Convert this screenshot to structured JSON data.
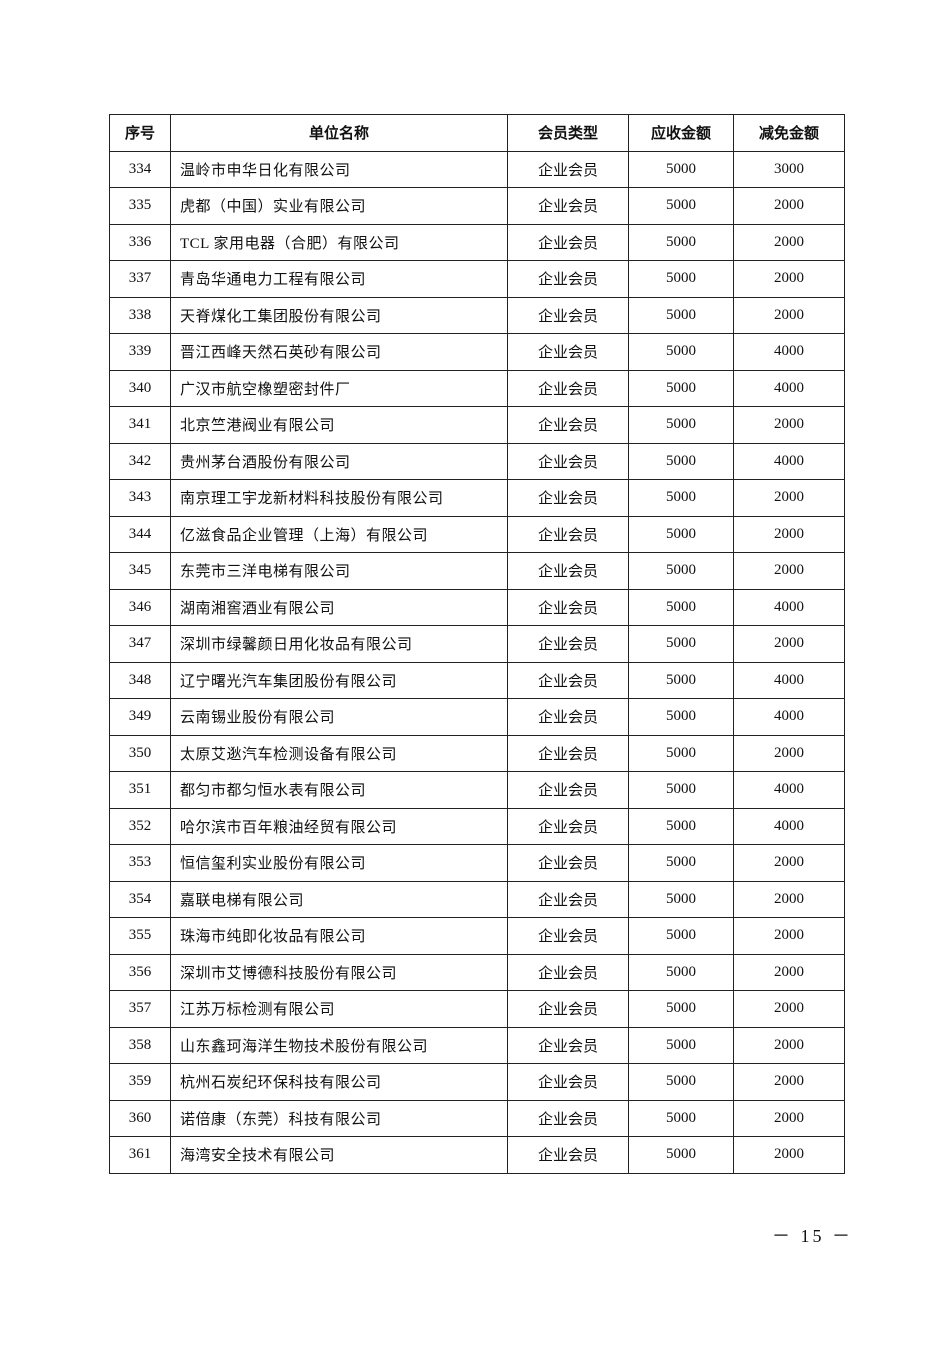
{
  "table": {
    "headers": [
      "序号",
      "单位名称",
      "会员类型",
      "应收金额",
      "减免金额"
    ],
    "rows": [
      [
        "334",
        "温岭市申华日化有限公司",
        "企业会员",
        "5000",
        "3000"
      ],
      [
        "335",
        "虎都（中国）实业有限公司",
        "企业会员",
        "5000",
        "2000"
      ],
      [
        "336",
        "TCL 家用电器（合肥）有限公司",
        "企业会员",
        "5000",
        "2000"
      ],
      [
        "337",
        "青岛华通电力工程有限公司",
        "企业会员",
        "5000",
        "2000"
      ],
      [
        "338",
        "天脊煤化工集团股份有限公司",
        "企业会员",
        "5000",
        "2000"
      ],
      [
        "339",
        "晋江西峰天然石英砂有限公司",
        "企业会员",
        "5000",
        "4000"
      ],
      [
        "340",
        "广汉市航空橡塑密封件厂",
        "企业会员",
        "5000",
        "4000"
      ],
      [
        "341",
        "北京竺港阀业有限公司",
        "企业会员",
        "5000",
        "2000"
      ],
      [
        "342",
        "贵州茅台酒股份有限公司",
        "企业会员",
        "5000",
        "4000"
      ],
      [
        "343",
        "南京理工宇龙新材料科技股份有限公司",
        "企业会员",
        "5000",
        "2000"
      ],
      [
        "344",
        "亿滋食品企业管理（上海）有限公司",
        "企业会员",
        "5000",
        "2000"
      ],
      [
        "345",
        "东莞市三洋电梯有限公司",
        "企业会员",
        "5000",
        "2000"
      ],
      [
        "346",
        "湖南湘窖酒业有限公司",
        "企业会员",
        "5000",
        "4000"
      ],
      [
        "347",
        "深圳市绿馨颜日用化妆品有限公司",
        "企业会员",
        "5000",
        "2000"
      ],
      [
        "348",
        "辽宁曙光汽车集团股份有限公司",
        "企业会员",
        "5000",
        "4000"
      ],
      [
        "349",
        "云南锡业股份有限公司",
        "企业会员",
        "5000",
        "4000"
      ],
      [
        "350",
        "太原艾逖汽车检测设备有限公司",
        "企业会员",
        "5000",
        "2000"
      ],
      [
        "351",
        "都匀市都匀恒水表有限公司",
        "企业会员",
        "5000",
        "4000"
      ],
      [
        "352",
        "哈尔滨市百年粮油经贸有限公司",
        "企业会员",
        "5000",
        "4000"
      ],
      [
        "353",
        "恒信玺利实业股份有限公司",
        "企业会员",
        "5000",
        "2000"
      ],
      [
        "354",
        "嘉联电梯有限公司",
        "企业会员",
        "5000",
        "2000"
      ],
      [
        "355",
        "珠海市纯即化妆品有限公司",
        "企业会员",
        "5000",
        "2000"
      ],
      [
        "356",
        "深圳市艾博德科技股份有限公司",
        "企业会员",
        "5000",
        "2000"
      ],
      [
        "357",
        "江苏万标检测有限公司",
        "企业会员",
        "5000",
        "2000"
      ],
      [
        "358",
        "山东鑫珂海洋生物技术股份有限公司",
        "企业会员",
        "5000",
        "2000"
      ],
      [
        "359",
        "杭州石炭纪环保科技有限公司",
        "企业会员",
        "5000",
        "2000"
      ],
      [
        "360",
        "诺倍康（东莞）科技有限公司",
        "企业会员",
        "5000",
        "2000"
      ],
      [
        "361",
        "海湾安全技术有限公司",
        "企业会员",
        "5000",
        "2000"
      ]
    ]
  },
  "page_number": "－ 15 －"
}
